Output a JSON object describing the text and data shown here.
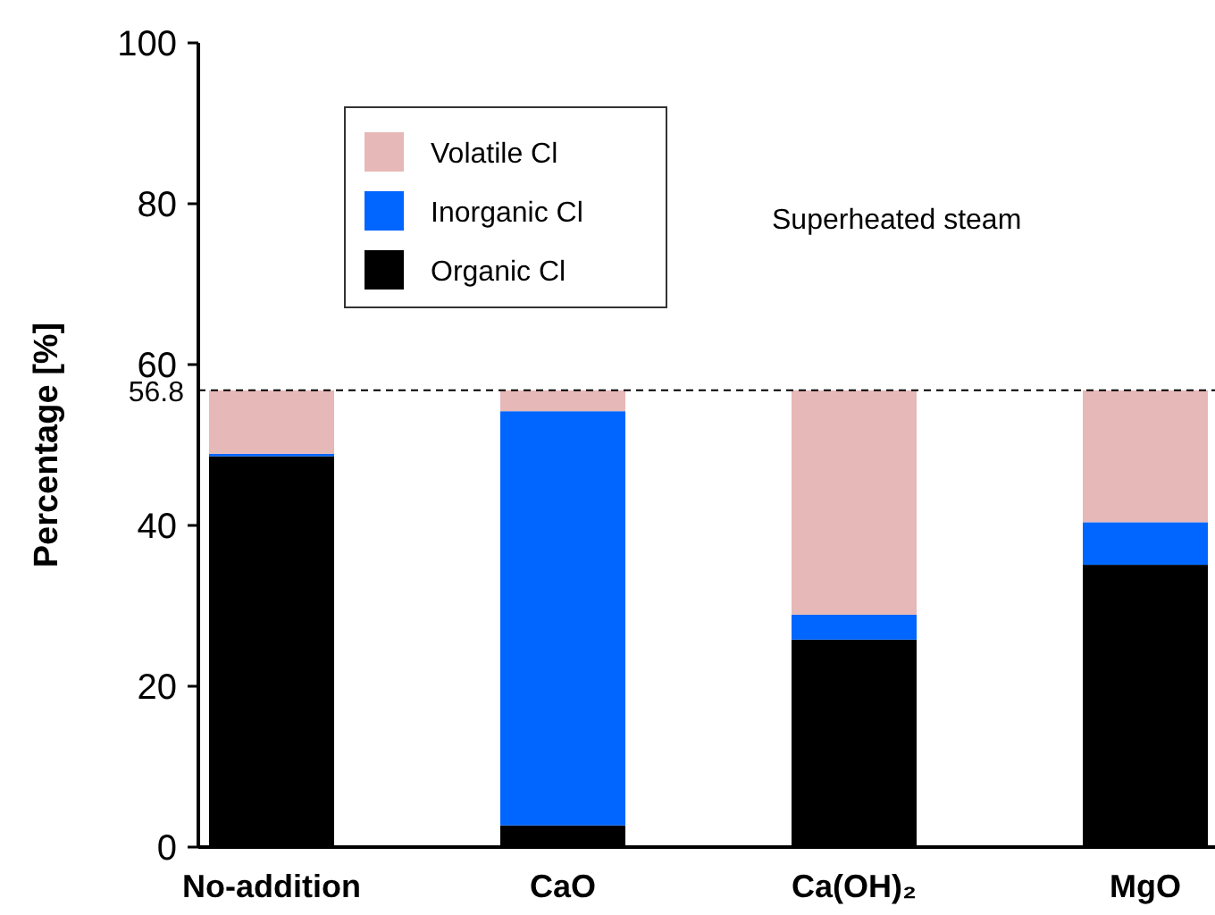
{
  "chart_data": {
    "type": "bar",
    "stacked": true,
    "ylabel": "Percentage [%]",
    "categories": [
      "No-addition",
      "CaO",
      "Ca(OH)₂",
      "MgO"
    ],
    "series": [
      {
        "name": "Organic Cl",
        "color": "#000000",
        "values": [
          48.6,
          2.7,
          25.8,
          35.1
        ]
      },
      {
        "name": "Inorganic Cl",
        "color": "#0066ff",
        "values": [
          0.3,
          51.5,
          3.1,
          5.3
        ]
      },
      {
        "name": "Volatile Cl",
        "color": "#e6b8b7",
        "values": [
          7.9,
          2.6,
          27.9,
          16.4
        ]
      }
    ],
    "ylim": [
      0,
      100
    ],
    "yticks": [
      0,
      20,
      40,
      60,
      80,
      100
    ],
    "grid": false,
    "legend": "top left",
    "ref_lines": [
      {
        "axis": "y",
        "value": 56.8,
        "label": "56.8",
        "color": "#000000",
        "line_style": "dashed"
      }
    ],
    "annotations": [
      "Superheated steam"
    ]
  }
}
